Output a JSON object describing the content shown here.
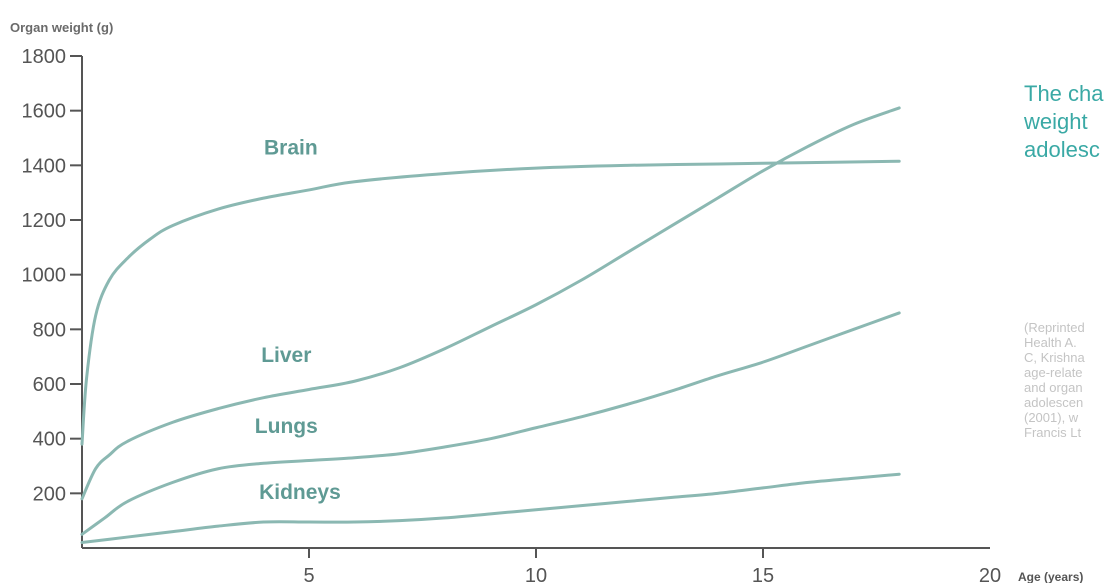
{
  "chart_data": {
    "type": "line",
    "ylabel": "Organ weight (g)",
    "xlabel": "Age (years)",
    "xlim": [
      0,
      20
    ],
    "ylim": [
      0,
      1800
    ],
    "x_ticks": [
      "5",
      "10",
      "15",
      "20"
    ],
    "y_ticks": [
      "200",
      "400",
      "600",
      "800",
      "1000",
      "1200",
      "1400",
      "1600",
      "1800"
    ],
    "grid": false,
    "legend": "inline labels",
    "series": [
      {
        "name": "Brain",
        "x": [
          0,
          0.1,
          0.3,
          0.6,
          1,
          1.5,
          2,
          3,
          4,
          5,
          6,
          8,
          10,
          12,
          14,
          16,
          18
        ],
        "values": [
          380,
          620,
          850,
          980,
          1060,
          1130,
          1180,
          1240,
          1280,
          1310,
          1340,
          1370,
          1390,
          1400,
          1405,
          1410,
          1415
        ]
      },
      {
        "name": "Liver",
        "x": [
          0,
          0.3,
          0.6,
          1,
          2,
          3,
          4,
          5,
          6,
          7,
          8,
          9,
          10,
          11,
          12,
          13,
          14,
          15,
          16,
          17,
          18
        ],
        "values": [
          180,
          290,
          340,
          390,
          460,
          510,
          550,
          580,
          610,
          660,
          730,
          810,
          890,
          980,
          1080,
          1180,
          1280,
          1380,
          1470,
          1550,
          1610
        ]
      },
      {
        "name": "Lungs",
        "x": [
          0,
          0.5,
          1,
          2,
          3,
          4,
          5,
          6,
          7,
          8,
          9,
          10,
          11,
          12,
          13,
          14,
          15,
          16,
          17,
          18
        ],
        "values": [
          50,
          110,
          170,
          240,
          290,
          310,
          320,
          330,
          345,
          370,
          400,
          440,
          480,
          525,
          575,
          630,
          680,
          740,
          800,
          860
        ]
      },
      {
        "name": "Kidneys",
        "x": [
          0,
          1,
          2,
          3,
          4,
          5,
          6,
          7,
          8,
          9,
          10,
          11,
          12,
          13,
          14,
          15,
          16,
          17,
          18
        ],
        "values": [
          20,
          40,
          60,
          80,
          95,
          95,
          95,
          100,
          110,
          125,
          140,
          155,
          170,
          185,
          200,
          220,
          240,
          255,
          270
        ]
      }
    ]
  },
  "caption": {
    "lines": [
      "The cha",
      "weight",
      "adolesc"
    ]
  },
  "source": {
    "lines": [
      "(Reprinted",
      "Health A.",
      "C, Krishna",
      "age-relate",
      "and organ",
      "adolescen",
      "(2001), w",
      "Francis Lt"
    ]
  },
  "colors": {
    "line": "#8bb8b2",
    "label": "#5f9a94",
    "caption": "#3aa9a5",
    "axis": "#555555",
    "source": "#c4c4c4"
  }
}
